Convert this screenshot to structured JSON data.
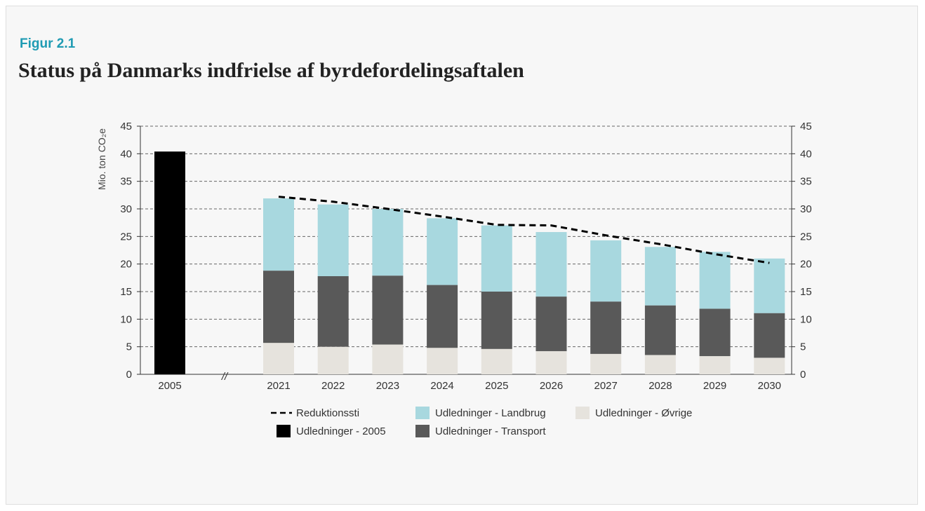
{
  "figure": {
    "label": "Figur 2.1",
    "title": "Status på Danmarks indfrielse af byrdefordelingsaftalen"
  },
  "chart_data": {
    "type": "bar",
    "stacked": true,
    "ylabel": "Mio. ton CO₂e",
    "ylim": [
      0,
      45
    ],
    "yticks": [
      0,
      5,
      10,
      15,
      20,
      25,
      30,
      35,
      40,
      45
    ],
    "right_axis": true,
    "grid": "dashed horizontal",
    "axis_break": "//",
    "base_year": {
      "category": "2005",
      "value": 40.4
    },
    "categories": [
      "2021",
      "2022",
      "2023",
      "2024",
      "2025",
      "2026",
      "2027",
      "2028",
      "2029",
      "2030"
    ],
    "series": [
      {
        "name": "Udledninger - Øvrige",
        "color": "#e6e3dd",
        "values": [
          5.7,
          5.0,
          5.4,
          4.8,
          4.6,
          4.2,
          3.7,
          3.5,
          3.3,
          3.0
        ]
      },
      {
        "name": "Udledninger - Transport",
        "color": "#595959",
        "values": [
          13.1,
          12.8,
          12.5,
          11.4,
          10.4,
          9.9,
          9.5,
          9.0,
          8.6,
          8.1
        ]
      },
      {
        "name": "Udledninger - Landbrug",
        "color": "#a8d8df",
        "values": [
          13.1,
          13.0,
          12.1,
          12.1,
          12.0,
          11.7,
          11.1,
          10.6,
          10.3,
          9.9
        ]
      }
    ],
    "base_series": {
      "name": "Udledninger - 2005",
      "color": "#000000"
    },
    "line": {
      "name": "Reduktionssti",
      "style": "dashed",
      "color": "#000000",
      "values": [
        32.2,
        31.3,
        30.0,
        28.6,
        27.1,
        27.0,
        25.2,
        23.6,
        21.8,
        20.2
      ]
    },
    "legend": [
      {
        "key": "line",
        "label": "Reduktionssti"
      },
      {
        "key": "landbrug",
        "label": "Udledninger - Landbrug",
        "color": "#a8d8df"
      },
      {
        "key": "ovrige",
        "label": "Udledninger - Øvrige",
        "color": "#e6e3dd"
      },
      {
        "key": "base",
        "label": "Udledninger - 2005",
        "color": "#000000"
      },
      {
        "key": "transport",
        "label": "Udledninger - Transport",
        "color": "#595959"
      }
    ],
    "legend_position": "bottom"
  }
}
